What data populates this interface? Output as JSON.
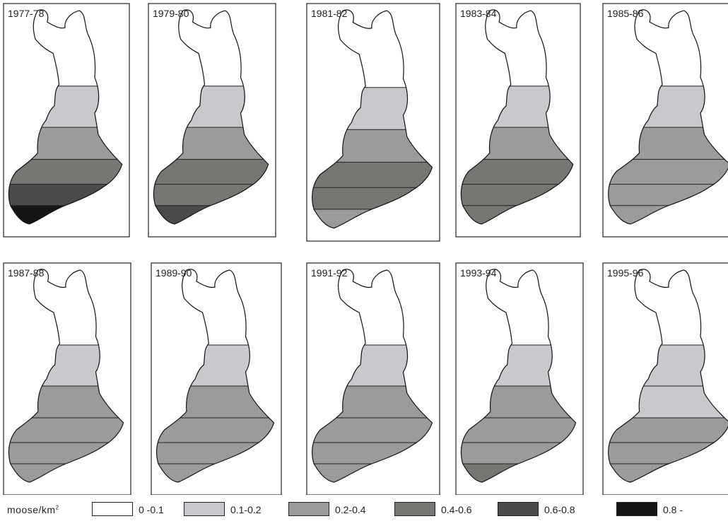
{
  "colors": {
    "c1": "#ffffff",
    "c2": "#c9c9cd",
    "c3": "#9b9b9b",
    "c4": "#767673",
    "c5": "#4a4a4a",
    "c6": "#151515"
  },
  "panels": [
    {
      "title": "1977-78",
      "bands": [
        "c1",
        "c2",
        "c3",
        "c4",
        "c5",
        "c6"
      ]
    },
    {
      "title": "1979-80",
      "bands": [
        "c1",
        "c2",
        "c3",
        "c4",
        "c4",
        "c5"
      ]
    },
    {
      "title": "1981-82",
      "bands": [
        "c1",
        "c2",
        "c3",
        "c4",
        "c4",
        "c3"
      ]
    },
    {
      "title": "1983-84",
      "bands": [
        "c1",
        "c2",
        "c3",
        "c4",
        "c4",
        "c4"
      ]
    },
    {
      "title": "1985-86",
      "bands": [
        "c1",
        "c2",
        "c3",
        "c3",
        "c3",
        "c3"
      ]
    },
    {
      "title": "1987-88",
      "bands": [
        "c1",
        "c2",
        "c3",
        "c3",
        "c3",
        "c3"
      ]
    },
    {
      "title": "1989-90",
      "bands": [
        "c1",
        "c2",
        "c3",
        "c3",
        "c3",
        "c3"
      ]
    },
    {
      "title": "1991-92",
      "bands": [
        "c1",
        "c2",
        "c3",
        "c3",
        "c3",
        "c3"
      ]
    },
    {
      "title": "1993-94",
      "bands": [
        "c1",
        "c2",
        "c3",
        "c3",
        "c3",
        "c4"
      ]
    },
    {
      "title": "1995-96",
      "bands": [
        "c1",
        "c2",
        "c2",
        "c3",
        "c3",
        "c3"
      ]
    }
  ],
  "legend": {
    "label": "moose/km",
    "label_sup": "2",
    "items": [
      {
        "label": "0 -0.1",
        "color": "#ffffff"
      },
      {
        "label": "0.1-0.2",
        "color": "#c9c9cd"
      },
      {
        "label": "0.2-0.4",
        "color": "#9b9b9b"
      },
      {
        "label": "0.4-0.6",
        "color": "#767673"
      },
      {
        "label": "0.6-0.8",
        "color": "#4a4a4a"
      },
      {
        "label": "0.8 -",
        "color": "#151515"
      }
    ]
  }
}
